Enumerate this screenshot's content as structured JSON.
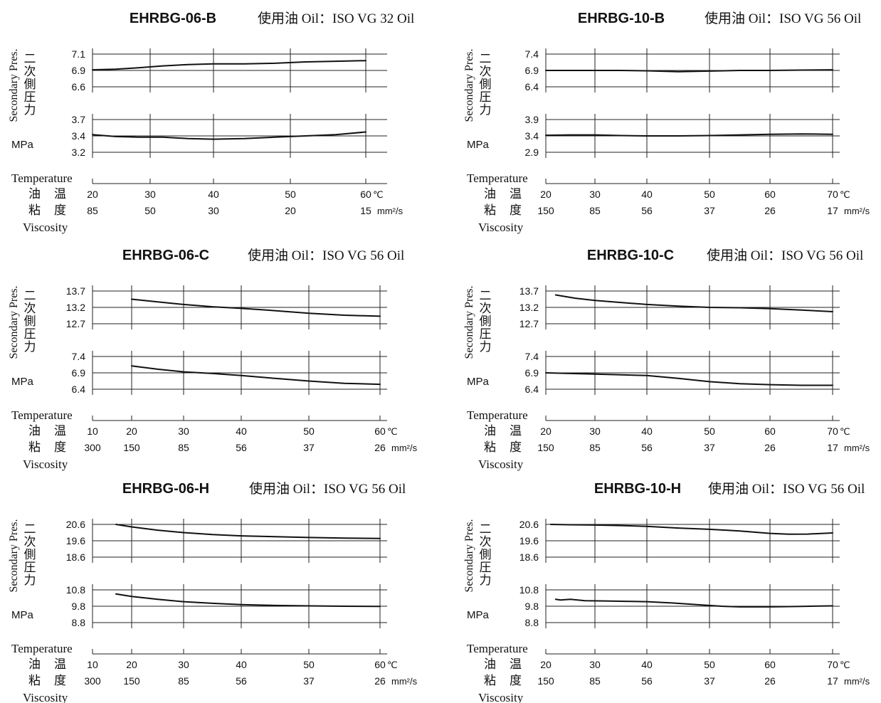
{
  "panels": [
    {
      "model": "EHRBG-06-B",
      "oil_label": "使用油 Oil：ISO VG 32 Oil",
      "y_label_en": "Secondary Pres.",
      "y_label_jp": [
        "二",
        "次",
        "側",
        "圧",
        "力"
      ],
      "unit": "MPa",
      "temperature_label": "Temperature",
      "temp_jp": [
        "油",
        "温"
      ],
      "visc_jp": [
        "粘",
        "度"
      ],
      "viscosity_label": "Viscosity",
      "temp_ticks": [
        "20",
        "30",
        "40",
        "50",
        "60"
      ],
      "temp_unit": "℃",
      "visc_ticks": [
        "85",
        "50",
        "30",
        "20",
        "15"
      ],
      "visc_unit": "mm²/s"
    },
    {
      "model": "EHRBG-10-B",
      "oil_label": "使用油 Oil：ISO VG 56 Oil",
      "y_label_en": "Secondary Pres.",
      "y_label_jp": [
        "二",
        "次",
        "側",
        "圧",
        "力"
      ],
      "unit": "MPa",
      "temperature_label": "Temperature",
      "temp_jp": [
        "油",
        "温"
      ],
      "visc_jp": [
        "粘",
        "度"
      ],
      "viscosity_label": "Viscosity",
      "temp_ticks": [
        "20",
        "30",
        "40",
        "50",
        "60",
        "70"
      ],
      "temp_unit": "℃",
      "visc_ticks": [
        "150",
        "85",
        "56",
        "37",
        "26",
        "17"
      ],
      "visc_unit": "mm²/s"
    },
    {
      "model": "EHRBG-06-C",
      "oil_label": "使用油 Oil：ISO VG 56 Oil",
      "y_label_en": "Secondary Pres.",
      "y_label_jp": [
        "二",
        "次",
        "側",
        "圧",
        "力"
      ],
      "unit": "MPa",
      "temperature_label": "Temperature",
      "temp_jp": [
        "油",
        "温"
      ],
      "visc_jp": [
        "粘",
        "度"
      ],
      "viscosity_label": "Viscosity",
      "temp_ticks": [
        "10",
        "20",
        "30",
        "40",
        "50",
        "60"
      ],
      "temp_unit": "℃",
      "visc_ticks": [
        "300",
        "150",
        "85",
        "56",
        "37",
        "26"
      ],
      "visc_unit": "mm²/s"
    },
    {
      "model": "EHRBG-10-C",
      "oil_label": "使用油 Oil：ISO VG 56 Oil",
      "y_label_en": "Secondary Pres.",
      "y_label_jp": [
        "二",
        "次",
        "側",
        "圧",
        "力"
      ],
      "unit": "MPa",
      "temperature_label": "Temperature",
      "temp_jp": [
        "油",
        "温"
      ],
      "visc_jp": [
        "粘",
        "度"
      ],
      "viscosity_label": "Viscosity",
      "temp_ticks": [
        "20",
        "30",
        "40",
        "50",
        "60",
        "70"
      ],
      "temp_unit": "℃",
      "visc_ticks": [
        "150",
        "85",
        "56",
        "37",
        "26",
        "17"
      ],
      "visc_unit": "mm²/s"
    },
    {
      "model": "EHRBG-06-H",
      "oil_label": "使用油 Oil：ISO VG 56 Oil",
      "y_label_en": "Secondary Pres.",
      "y_label_jp": [
        "二",
        "次",
        "側",
        "圧",
        "力"
      ],
      "unit": "MPa",
      "temperature_label": "Temperature",
      "temp_jp": [
        "油",
        "温"
      ],
      "visc_jp": [
        "粘",
        "度"
      ],
      "viscosity_label": "Viscosity",
      "temp_ticks": [
        "10",
        "20",
        "30",
        "40",
        "50",
        "60"
      ],
      "temp_unit": "℃",
      "visc_ticks": [
        "300",
        "150",
        "85",
        "56",
        "37",
        "26"
      ],
      "visc_unit": "mm²/s"
    },
    {
      "model": "EHRBG-10-H",
      "oil_label": "使用油 Oil：ISO VG 56 Oil",
      "y_label_en": "Secondary Pres.",
      "y_label_jp": [
        "二",
        "次",
        "側",
        "圧",
        "力"
      ],
      "unit": "MPa",
      "temperature_label": "Temperature",
      "temp_jp": [
        "油",
        "温"
      ],
      "visc_jp": [
        "粘",
        "度"
      ],
      "viscosity_label": "Viscosity",
      "temp_ticks": [
        "20",
        "30",
        "40",
        "50",
        "60",
        "70"
      ],
      "temp_unit": "℃",
      "visc_ticks": [
        "150",
        "85",
        "56",
        "37",
        "26",
        "17"
      ],
      "visc_unit": "mm²/s"
    }
  ],
  "chart_data": [
    {
      "type": "line",
      "title": "EHRBG-06-B",
      "xlabel": "Temperature 油温 (℃)",
      "ylabel": "Secondary Pres. (MPa)",
      "xlim": [
        20,
        60
      ],
      "upper": {
        "yticks": [
          "7.1",
          "6.9",
          "6.6"
        ],
        "ylim": [
          6.6,
          7.1
        ],
        "x": [
          20,
          24,
          28,
          32,
          36,
          40,
          44,
          48,
          52,
          56,
          60
        ],
        "y": [
          6.86,
          6.87,
          6.89,
          6.92,
          6.94,
          6.95,
          6.95,
          6.96,
          6.98,
          6.99,
          7.0
        ]
      },
      "lower": {
        "yticks": [
          "3.7",
          "3.4",
          "3.2"
        ],
        "ylim": [
          3.2,
          3.7
        ],
        "x": [
          20,
          24,
          28,
          32,
          36,
          40,
          44,
          48,
          52,
          56,
          60
        ],
        "y": [
          3.47,
          3.44,
          3.43,
          3.43,
          3.41,
          3.4,
          3.41,
          3.43,
          3.45,
          3.47,
          3.51
        ]
      }
    },
    {
      "type": "line",
      "title": "EHRBG-10-B",
      "xlabel": "Temperature 油温 (℃)",
      "ylabel": "Secondary Pres. (MPa)",
      "xlim": [
        20,
        70
      ],
      "upper": {
        "yticks": [
          "7.4",
          "6.9",
          "6.4"
        ],
        "ylim": [
          6.4,
          7.4
        ],
        "x": [
          20,
          25,
          30,
          35,
          40,
          45,
          50,
          55,
          60,
          65,
          70
        ],
        "y": [
          6.9,
          6.9,
          6.9,
          6.9,
          6.89,
          6.86,
          6.88,
          6.9,
          6.9,
          6.91,
          6.92
        ]
      },
      "lower": {
        "yticks": [
          "3.9",
          "3.4",
          "2.9"
        ],
        "ylim": [
          2.9,
          3.9
        ],
        "x": [
          20,
          25,
          30,
          35,
          40,
          45,
          50,
          55,
          60,
          65,
          70
        ],
        "y": [
          3.42,
          3.43,
          3.43,
          3.41,
          3.4,
          3.4,
          3.41,
          3.43,
          3.45,
          3.46,
          3.45
        ]
      }
    },
    {
      "type": "line",
      "title": "EHRBG-06-C",
      "xlabel": "Temperature 油温 (℃)",
      "ylabel": "Secondary Pres. (MPa)",
      "xlim": [
        10,
        60
      ],
      "upper": {
        "yticks": [
          "13.7",
          "13.2",
          "12.7"
        ],
        "ylim": [
          12.7,
          13.7
        ],
        "x": [
          20,
          25,
          30,
          35,
          40,
          45,
          50,
          55,
          60
        ],
        "y": [
          13.45,
          13.37,
          13.29,
          13.22,
          13.17,
          13.1,
          13.02,
          12.96,
          12.93
        ]
      },
      "lower": {
        "yticks": [
          "7.4",
          "6.9",
          "6.4"
        ],
        "ylim": [
          6.4,
          7.4
        ],
        "x": [
          20,
          25,
          30,
          35,
          40,
          45,
          50,
          55,
          60
        ],
        "y": [
          7.11,
          7.01,
          6.93,
          6.88,
          6.82,
          6.73,
          6.65,
          6.58,
          6.55
        ]
      }
    },
    {
      "type": "line",
      "title": "EHRBG-10-C",
      "xlabel": "Temperature 油温 (℃)",
      "ylabel": "Secondary Pres. (MPa)",
      "xlim": [
        20,
        70
      ],
      "upper": {
        "yticks": [
          "13.7",
          "13.2",
          "12.7"
        ],
        "ylim": [
          12.7,
          13.7
        ],
        "x": [
          22,
          26,
          30,
          35,
          40,
          45,
          50,
          55,
          60,
          65,
          70
        ],
        "y": [
          13.58,
          13.48,
          13.41,
          13.35,
          13.29,
          13.24,
          13.2,
          13.19,
          13.16,
          13.12,
          13.07
        ]
      },
      "lower": {
        "yticks": [
          "7.4",
          "6.9",
          "6.4"
        ],
        "ylim": [
          6.4,
          7.4
        ],
        "x": [
          20,
          25,
          30,
          35,
          40,
          45,
          50,
          55,
          60,
          65,
          70
        ],
        "y": [
          6.9,
          6.88,
          6.86,
          6.84,
          6.82,
          6.73,
          6.63,
          6.57,
          6.54,
          6.52,
          6.52
        ]
      }
    },
    {
      "type": "line",
      "title": "EHRBG-06-H",
      "xlabel": "Temperature 油温 (℃)",
      "ylabel": "Secondary Pres. (MPa)",
      "xlim": [
        10,
        60
      ],
      "upper": {
        "yticks": [
          "20.6",
          "19.6",
          "18.6"
        ],
        "ylim": [
          18.6,
          20.6
        ],
        "x": [
          16,
          20,
          25,
          30,
          35,
          40,
          45,
          50,
          55,
          60
        ],
        "y": [
          20.6,
          20.45,
          20.25,
          20.1,
          19.98,
          19.9,
          19.85,
          19.8,
          19.76,
          19.74
        ]
      },
      "lower": {
        "yticks": [
          "10.8",
          "9.8",
          "8.8"
        ],
        "ylim": [
          8.8,
          10.8
        ],
        "x": [
          16,
          20,
          25,
          30,
          35,
          40,
          45,
          50,
          55,
          60
        ],
        "y": [
          10.55,
          10.4,
          10.22,
          10.08,
          9.98,
          9.9,
          9.85,
          9.82,
          9.8,
          9.79
        ]
      }
    },
    {
      "type": "line",
      "title": "EHRBG-10-H",
      "xlabel": "Temperature 油温 (℃)",
      "ylabel": "Secondary Pres. (MPa)",
      "xlim": [
        20,
        70
      ],
      "upper": {
        "yticks": [
          "20.6",
          "19.6",
          "18.6"
        ],
        "ylim": [
          18.6,
          20.6
        ],
        "x": [
          21,
          25,
          30,
          35,
          40,
          45,
          50,
          55,
          60,
          63,
          66,
          70
        ],
        "y": [
          20.6,
          20.58,
          20.56,
          20.53,
          20.48,
          20.38,
          20.3,
          20.2,
          20.05,
          20.0,
          20.01,
          20.08
        ]
      },
      "lower": {
        "yticks": [
          "10.8",
          "9.8",
          "8.8"
        ],
        "ylim": [
          8.8,
          10.8
        ],
        "x": [
          22,
          23,
          25,
          28,
          32,
          36,
          40,
          44,
          48,
          52,
          55,
          60,
          65,
          70
        ],
        "y": [
          10.22,
          10.18,
          10.22,
          10.14,
          10.12,
          10.1,
          10.08,
          10.0,
          9.9,
          9.8,
          9.76,
          9.76,
          9.79,
          9.82
        ]
      }
    }
  ]
}
